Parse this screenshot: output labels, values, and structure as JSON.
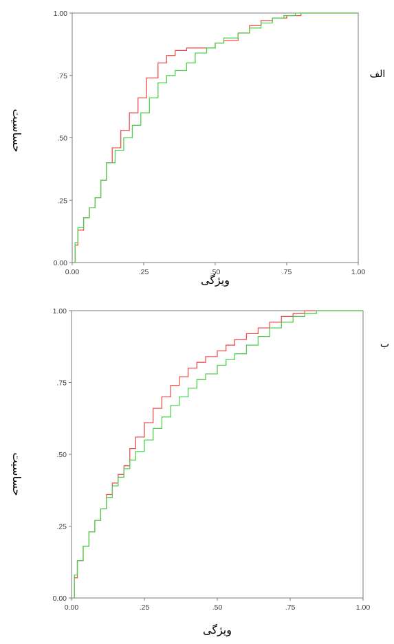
{
  "chart_data": [
    {
      "type": "line",
      "panel_label": "الف",
      "xlabel": "ویژگی",
      "ylabel": "حساسیت",
      "xlim": [
        0,
        1
      ],
      "ylim": [
        0,
        1
      ],
      "x_ticks": [
        "0.00",
        ".25",
        ".50",
        ".75",
        "1.00"
      ],
      "y_ticks": [
        "0.00",
        ".25",
        ".50",
        ".75",
        "1.00"
      ],
      "x_tick_values": [
        0,
        0.25,
        0.5,
        0.75,
        1
      ],
      "y_tick_values": [
        0,
        0.25,
        0.5,
        0.75,
        1
      ],
      "grid": false,
      "series": [
        {
          "color": "#f05050",
          "x": [
            0,
            0.01,
            0.02,
            0.04,
            0.06,
            0.08,
            0.1,
            0.12,
            0.14,
            0.17,
            0.2,
            0.23,
            0.26,
            0.3,
            0.33,
            0.36,
            0.4,
            0.44,
            0.47,
            0.5,
            0.53,
            0.58,
            0.62,
            0.66,
            0.7,
            0.75,
            0.8,
            0.84,
            1.0
          ],
          "y": [
            0,
            0.07,
            0.13,
            0.18,
            0.22,
            0.26,
            0.33,
            0.4,
            0.46,
            0.53,
            0.6,
            0.66,
            0.74,
            0.8,
            0.83,
            0.85,
            0.86,
            0.86,
            0.86,
            0.88,
            0.89,
            0.92,
            0.95,
            0.97,
            0.98,
            0.99,
            1.0,
            1.0,
            1.0
          ]
        },
        {
          "color": "#50d050",
          "x": [
            0,
            0.01,
            0.02,
            0.04,
            0.06,
            0.08,
            0.1,
            0.12,
            0.15,
            0.18,
            0.21,
            0.24,
            0.27,
            0.3,
            0.33,
            0.36,
            0.4,
            0.43,
            0.47,
            0.5,
            0.53,
            0.58,
            0.62,
            0.66,
            0.7,
            0.74,
            0.78,
            0.82,
            1.0
          ],
          "y": [
            0,
            0.08,
            0.14,
            0.18,
            0.22,
            0.26,
            0.33,
            0.4,
            0.45,
            0.5,
            0.55,
            0.6,
            0.66,
            0.72,
            0.75,
            0.77,
            0.8,
            0.84,
            0.86,
            0.88,
            0.9,
            0.92,
            0.94,
            0.96,
            0.98,
            0.99,
            1.0,
            1.0,
            1.0
          ]
        }
      ]
    },
    {
      "type": "line",
      "panel_label": "ب",
      "xlabel": "ویژگی",
      "ylabel": "حساسیت",
      "xlim": [
        0,
        1
      ],
      "ylim": [
        0,
        1
      ],
      "x_ticks": [
        "0.00",
        ".25",
        ".50",
        ".75",
        "1.00"
      ],
      "y_ticks": [
        "0.00",
        ".25",
        ".50",
        ".75",
        "1.00"
      ],
      "x_tick_values": [
        0,
        0.25,
        0.5,
        0.75,
        1
      ],
      "y_tick_values": [
        0,
        0.25,
        0.5,
        0.75,
        1
      ],
      "grid": false,
      "series": [
        {
          "color": "#f05050",
          "x": [
            0,
            0.01,
            0.02,
            0.04,
            0.06,
            0.08,
            0.1,
            0.12,
            0.14,
            0.16,
            0.18,
            0.2,
            0.22,
            0.25,
            0.28,
            0.31,
            0.34,
            0.37,
            0.4,
            0.43,
            0.46,
            0.5,
            0.53,
            0.56,
            0.6,
            0.64,
            0.68,
            0.72,
            0.76,
            0.8,
            0.84,
            0.88,
            0.92,
            1.0
          ],
          "y": [
            0,
            0.07,
            0.13,
            0.18,
            0.23,
            0.27,
            0.31,
            0.36,
            0.4,
            0.43,
            0.46,
            0.52,
            0.56,
            0.61,
            0.66,
            0.7,
            0.74,
            0.77,
            0.8,
            0.82,
            0.84,
            0.86,
            0.88,
            0.9,
            0.92,
            0.94,
            0.96,
            0.98,
            0.99,
            1.0,
            1.0,
            1.0,
            1.0,
            1.0
          ]
        },
        {
          "color": "#50d050",
          "x": [
            0,
            0.01,
            0.02,
            0.04,
            0.06,
            0.08,
            0.1,
            0.12,
            0.14,
            0.16,
            0.18,
            0.2,
            0.22,
            0.25,
            0.28,
            0.31,
            0.34,
            0.37,
            0.4,
            0.43,
            0.46,
            0.5,
            0.53,
            0.56,
            0.6,
            0.64,
            0.68,
            0.72,
            0.76,
            0.8,
            0.84,
            0.88,
            0.92,
            1.0
          ],
          "y": [
            0,
            0.08,
            0.13,
            0.18,
            0.23,
            0.27,
            0.31,
            0.35,
            0.39,
            0.42,
            0.45,
            0.48,
            0.51,
            0.55,
            0.59,
            0.63,
            0.67,
            0.7,
            0.73,
            0.76,
            0.78,
            0.81,
            0.83,
            0.85,
            0.88,
            0.91,
            0.94,
            0.96,
            0.98,
            0.99,
            1.0,
            1.0,
            1.0,
            1.0
          ]
        }
      ]
    }
  ]
}
